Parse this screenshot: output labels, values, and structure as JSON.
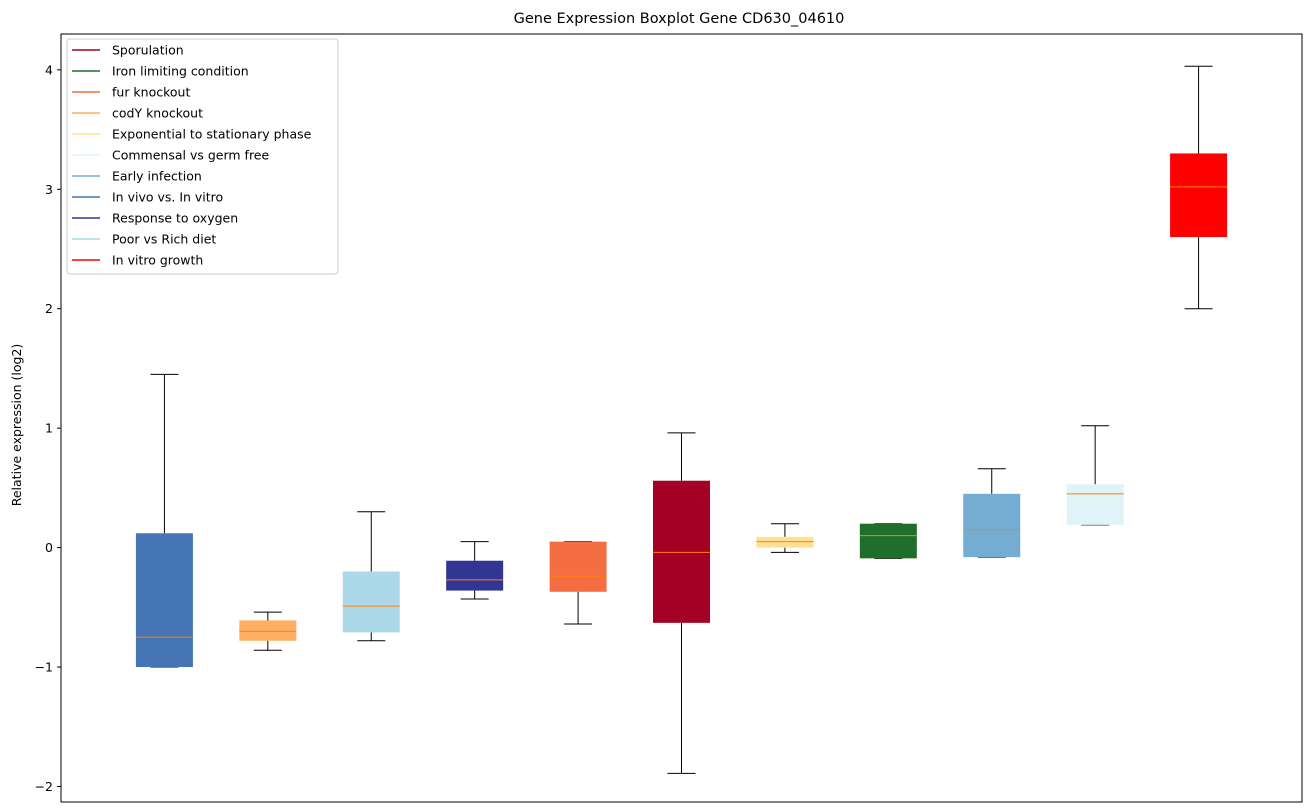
{
  "chart_data": {
    "type": "boxplot",
    "title": "Gene Expression Boxplot Gene CD630_04610",
    "xlabel": "",
    "ylabel": "Relative expression (log2)",
    "ylim": [
      -2.13,
      4.3
    ],
    "yticks": [
      -2,
      -1,
      0,
      1,
      2,
      3,
      4
    ],
    "ytick_labels": [
      "−2",
      "−1",
      "0",
      "1",
      "2",
      "3",
      "4"
    ],
    "grid": false,
    "legend_position": "top-left",
    "legend": [
      {
        "label": "Sporulation",
        "color": "#a50026"
      },
      {
        "label": "Iron limiting condition",
        "color": "#1f6e2b"
      },
      {
        "label": "fur knockout",
        "color": "#f46d43"
      },
      {
        "label": "codY knockout",
        "color": "#fdae61"
      },
      {
        "label": "Exponential to stationary phase",
        "color": "#fee090"
      },
      {
        "label": "Commensal vs germ free",
        "color": "#e0f3f8"
      },
      {
        "label": "Early infection",
        "color": "#74add1"
      },
      {
        "label": "In vivo vs. In vitro",
        "color": "#4575b4"
      },
      {
        "label": "Response to oxygen",
        "color": "#313695"
      },
      {
        "label": "Poor vs Rich diet",
        "color": "#abd9e9"
      },
      {
        "label": "In vitro growth",
        "color": "#ff0000"
      }
    ],
    "boxes": [
      {
        "group": "In vivo vs. In vitro",
        "color": "#4575b4",
        "whisker_low": -1.0,
        "q1": -1.0,
        "median": -0.75,
        "q3": 0.12,
        "whisker_high": 1.45
      },
      {
        "group": "codY knockout",
        "color": "#fdae61",
        "whisker_low": -0.86,
        "q1": -0.78,
        "median": -0.7,
        "q3": -0.61,
        "whisker_high": -0.54
      },
      {
        "group": "Poor vs Rich diet",
        "color": "#abd9e9",
        "whisker_low": -0.78,
        "q1": -0.71,
        "median": -0.49,
        "q3": -0.2,
        "whisker_high": 0.3
      },
      {
        "group": "Response to oxygen",
        "color": "#313695",
        "whisker_low": -0.43,
        "q1": -0.36,
        "median": -0.27,
        "q3": -0.11,
        "whisker_high": 0.05
      },
      {
        "group": "fur knockout",
        "color": "#f46d43",
        "whisker_low": -0.64,
        "q1": -0.37,
        "median": -0.24,
        "q3": 0.05,
        "whisker_high": 0.05
      },
      {
        "group": "Sporulation",
        "color": "#a50026",
        "whisker_low": -1.89,
        "q1": -0.63,
        "median": -0.04,
        "q3": 0.56,
        "whisker_high": 0.96
      },
      {
        "group": "Exponential to stationary phase",
        "color": "#fee090",
        "whisker_low": -0.04,
        "q1": 0.0,
        "median": 0.05,
        "q3": 0.09,
        "whisker_high": 0.2
      },
      {
        "group": "Iron limiting condition",
        "color": "#1f6e2b",
        "whisker_low": -0.09,
        "q1": -0.09,
        "median": 0.1,
        "q3": 0.2,
        "whisker_high": 0.2
      },
      {
        "group": "Early infection",
        "color": "#74add1",
        "whisker_low": -0.08,
        "q1": -0.08,
        "median": 0.15,
        "q3": 0.45,
        "whisker_high": 0.66
      },
      {
        "group": "Commensal vs germ free",
        "color": "#e0f3f8",
        "whisker_low": 0.19,
        "q1": 0.19,
        "median": 0.45,
        "q3": 0.53,
        "whisker_high": 1.02
      },
      {
        "group": "In vitro growth",
        "color": "#ff0000",
        "whisker_low": 2.0,
        "q1": 2.6,
        "median": 3.02,
        "q3": 3.3,
        "whisker_high": 4.03
      }
    ],
    "median_color": "#ff7f0e"
  }
}
